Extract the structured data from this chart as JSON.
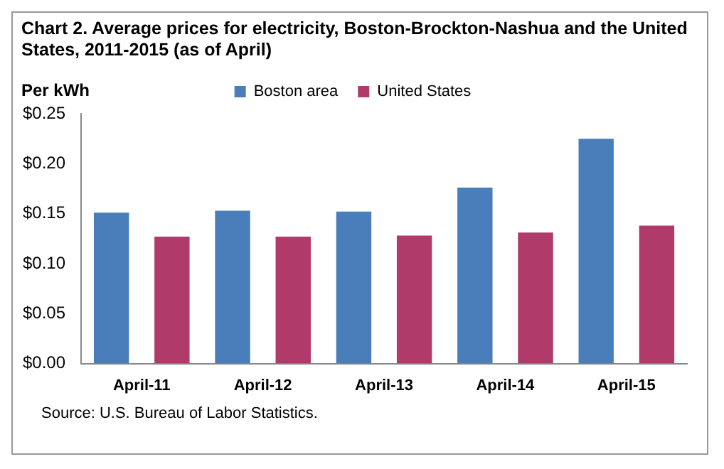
{
  "chart_data": {
    "type": "bar",
    "title": "Chart 2. Average prices for electricity, Boston-Brockton-Nashua  and the United  States, 2011-2015 (as of April)",
    "ylabel": "Per kWh",
    "categories": [
      "April-11",
      "April-12",
      "April-13",
      "April-14",
      "April-15"
    ],
    "series": [
      {
        "name": "Boston area",
        "color": "#4a7ebb",
        "values": [
          0.151,
          0.153,
          0.152,
          0.176,
          0.225
        ]
      },
      {
        "name": "United States",
        "color": "#b03a6a",
        "values": [
          0.127,
          0.127,
          0.128,
          0.131,
          0.138
        ]
      }
    ],
    "ylim": [
      0,
      0.25
    ],
    "yticks": [
      {
        "value": 0,
        "label": "$0.00"
      },
      {
        "value": 0.05,
        "label": "$0.05"
      },
      {
        "value": 0.1,
        "label": "$0.10"
      },
      {
        "value": 0.15,
        "label": "$0.15"
      },
      {
        "value": 0.2,
        "label": "$0.20"
      },
      {
        "value": 0.25,
        "label": "$0.25"
      }
    ],
    "grid": false,
    "legend": "top",
    "annotations": [
      "Source: U.S. Bureau of Labor Statistics."
    ]
  }
}
